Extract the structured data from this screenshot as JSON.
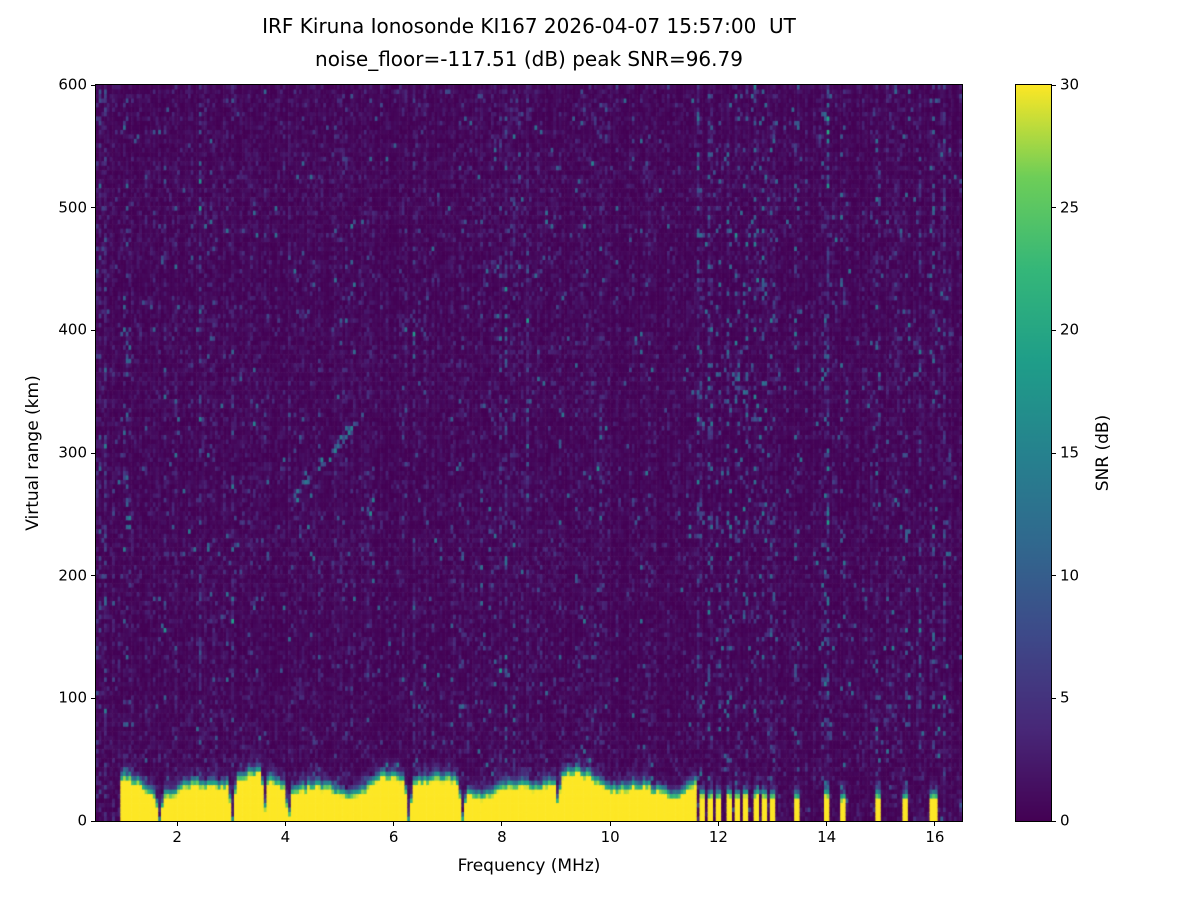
{
  "figure": {
    "background": "#ffffff"
  },
  "chart_data": {
    "type": "heatmap",
    "title": "IRF Kiruna Ionosonde KI167 2026-04-07 15:57:00  UT",
    "subtitle": "noise_floor=-117.51 (dB) peak SNR=96.79",
    "station": "IRF Kiruna Ionosonde KI167",
    "timestamp_ut": "2026-04-07 15:57:00 UT",
    "noise_floor_db": -117.51,
    "peak_snr_db": 96.79,
    "xlabel": "Frequency (MHz)",
    "ylabel": "Virtual range (km)",
    "xlim": [
      0.5,
      16.5
    ],
    "ylim": [
      0,
      600
    ],
    "xticks": [
      2,
      4,
      6,
      8,
      10,
      12,
      14,
      16
    ],
    "yticks": [
      0,
      100,
      200,
      300,
      400,
      500,
      600
    ],
    "grid": false,
    "colorbar": {
      "label": "SNR (dB)",
      "min": 0,
      "max": 30,
      "ticks": [
        0,
        5,
        10,
        15,
        20,
        25,
        30
      ],
      "colormap": "viridis"
    },
    "colormap_stops": [
      [
        0.0,
        "#440154"
      ],
      [
        0.125,
        "#482878"
      ],
      [
        0.25,
        "#3e4989"
      ],
      [
        0.375,
        "#31688e"
      ],
      [
        0.5,
        "#26828e"
      ],
      [
        0.625,
        "#1f9e89"
      ],
      [
        0.75,
        "#35b779"
      ],
      [
        0.875,
        "#6ece58"
      ],
      [
        1.0,
        "#fde725"
      ]
    ],
    "features": {
      "seed": 167,
      "grid": {
        "cols": 320,
        "rows": 164
      },
      "background_snr_db": [
        0,
        3
      ],
      "ground_band": {
        "freq_start": 0.95,
        "freq_end": 11.58,
        "top_km_typical": 34,
        "saturated_snr_db": 30,
        "notches": [
          {
            "f": 1.68,
            "w": 0.05,
            "depth": 0.8
          },
          {
            "f": 3.02,
            "w": 0.05,
            "depth": 0.85
          },
          {
            "f": 3.62,
            "w": 0.04,
            "depth": 0.6
          },
          {
            "f": 4.06,
            "w": 0.05,
            "depth": 0.7
          },
          {
            "f": 6.28,
            "w": 0.05,
            "depth": 0.85
          },
          {
            "f": 7.28,
            "w": 0.05,
            "depth": 0.8
          },
          {
            "f": 9.04,
            "w": 0.04,
            "depth": 0.45
          }
        ]
      },
      "intermittent_bars": [
        {
          "f": 11.68,
          "w": 0.05,
          "top": 27
        },
        {
          "f": 11.84,
          "w": 0.045,
          "top": 26
        },
        {
          "f": 12.01,
          "w": 0.045,
          "top": 26
        },
        {
          "f": 12.18,
          "w": 0.045,
          "top": 27
        },
        {
          "f": 12.34,
          "w": 0.045,
          "top": 26
        },
        {
          "f": 12.51,
          "w": 0.045,
          "top": 26
        },
        {
          "f": 12.68,
          "w": 0.045,
          "top": 27
        },
        {
          "f": 12.84,
          "w": 0.045,
          "top": 26
        },
        {
          "f": 13.01,
          "w": 0.045,
          "top": 26
        },
        {
          "f": 13.45,
          "w": 0.05,
          "top": 25
        },
        {
          "f": 13.99,
          "w": 0.06,
          "top": 26
        },
        {
          "f": 14.3,
          "w": 0.045,
          "top": 24
        },
        {
          "f": 14.95,
          "w": 0.05,
          "top": 25
        },
        {
          "f": 15.47,
          "w": 0.05,
          "top": 25
        },
        {
          "f": 15.98,
          "w": 0.06,
          "top": 26
        }
      ],
      "noise_stripes": [
        {
          "f": 1.05,
          "w": 0.08,
          "strength": 0.3
        },
        {
          "f": 11.68,
          "w": 0.05,
          "strength": 0.55
        },
        {
          "f": 11.84,
          "w": 0.05,
          "strength": 0.6
        },
        {
          "f": 12.01,
          "w": 0.05,
          "strength": 0.55
        },
        {
          "f": 12.18,
          "w": 0.05,
          "strength": 0.6
        },
        {
          "f": 12.34,
          "w": 0.05,
          "strength": 0.5
        },
        {
          "f": 12.51,
          "w": 0.05,
          "strength": 0.6
        },
        {
          "f": 12.68,
          "w": 0.05,
          "strength": 0.55
        },
        {
          "f": 12.84,
          "w": 0.05,
          "strength": 0.6
        },
        {
          "f": 13.01,
          "w": 0.05,
          "strength": 0.5
        },
        {
          "f": 13.45,
          "w": 0.05,
          "strength": 0.45
        },
        {
          "f": 13.99,
          "w": 0.06,
          "strength": 0.5
        },
        {
          "f": 14.3,
          "w": 0.05,
          "strength": 0.4
        },
        {
          "f": 14.95,
          "w": 0.05,
          "strength": 0.45
        },
        {
          "f": 15.47,
          "w": 0.05,
          "strength": 0.45
        },
        {
          "f": 15.98,
          "w": 0.06,
          "strength": 0.5
        },
        {
          "f": 16.18,
          "w": 0.04,
          "strength": 0.3
        },
        {
          "f": 2.6,
          "w": 0.06,
          "strength": 0.12
        },
        {
          "f": 4.5,
          "w": 0.06,
          "strength": 0.1
        },
        {
          "f": 5.15,
          "w": 0.06,
          "strength": 0.12
        },
        {
          "f": 7.3,
          "w": 0.06,
          "strength": 0.1
        },
        {
          "f": 9.5,
          "w": 0.06,
          "strength": 0.1
        },
        {
          "f": 10.6,
          "w": 0.06,
          "strength": 0.12
        }
      ],
      "echo_trace": {
        "f0": 4.15,
        "f1": 5.45,
        "r0": 262,
        "r1": 333
      }
    }
  }
}
